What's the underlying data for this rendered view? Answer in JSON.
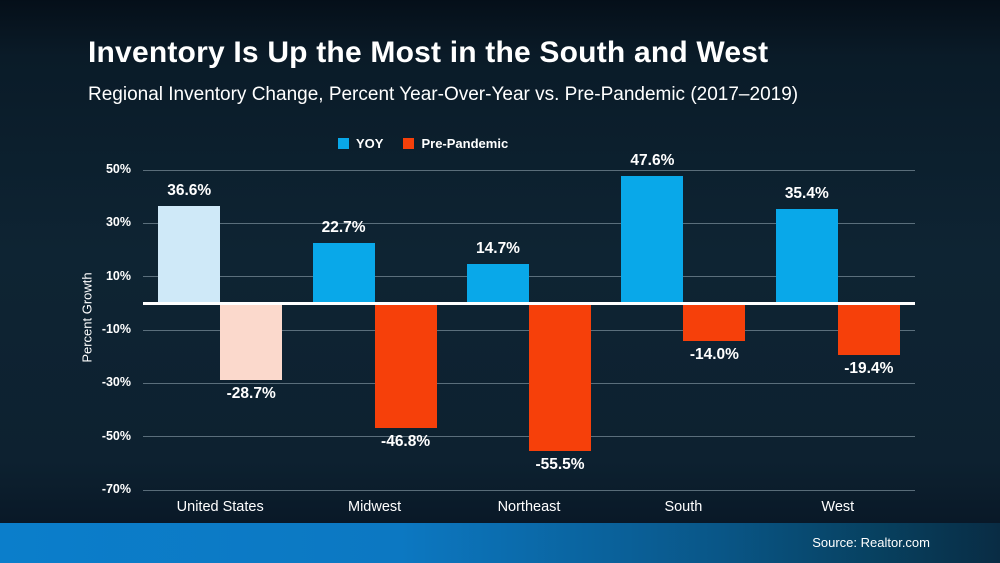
{
  "page": {
    "title": "Inventory Is Up the Most in the South and West",
    "subtitle": "Regional Inventory Change, Percent Year-Over-Year vs. Pre-Pandemic (2017–2019)"
  },
  "footer": {
    "source": "Source: Realtor.com"
  },
  "colors": {
    "yoy_blue": "#09a8e9",
    "pre_pandemic_orange": "#f6400a",
    "us_yoy_light_blue": "#cfe9f8",
    "us_pre_pandemic_light_pink": "#fbd9cc",
    "background_dark_navy": "#0d2232",
    "zero_line_white": "#ffffff",
    "gridline_gray": "#8fa3ad",
    "footer_bright_blue": "#0b7ecb"
  },
  "chart_data": {
    "type": "bar",
    "title": "Inventory Is Up the Most in the South and West",
    "subtitle": "Regional Inventory Change, Percent Year-Over-Year vs. Pre-Pandemic (2017–2019)",
    "categories": [
      "United States",
      "Midwest",
      "Northeast",
      "South",
      "West"
    ],
    "series": [
      {
        "name": "YOY",
        "color": "#09a8e9",
        "values": [
          36.6,
          22.7,
          14.7,
          47.6,
          35.4
        ],
        "labels": [
          "36.6%",
          "22.7%",
          "14.7%",
          "47.6%",
          "35.4%"
        ]
      },
      {
        "name": "Pre-Pandemic",
        "color": "#f6400a",
        "values": [
          -28.7,
          -46.8,
          -55.5,
          -14.0,
          -19.4
        ],
        "labels": [
          "-28.7%",
          "-46.8%",
          "-55.5%",
          "-14.0%",
          "-19.4%"
        ]
      }
    ],
    "highlight": {
      "category": "United States",
      "series_colors": [
        "#cfe9f8",
        "#fbd9cc"
      ]
    },
    "ylabel": "Percent Growth",
    "yticks": [
      50,
      30,
      10,
      -10,
      -30,
      -50,
      -70
    ],
    "ytick_labels": [
      "50%",
      "30%",
      "10%",
      "-10%",
      "-30%",
      "-50%",
      "-70%"
    ],
    "ylim": [
      -70,
      50
    ],
    "grid": true,
    "legend_position": "top-center"
  }
}
